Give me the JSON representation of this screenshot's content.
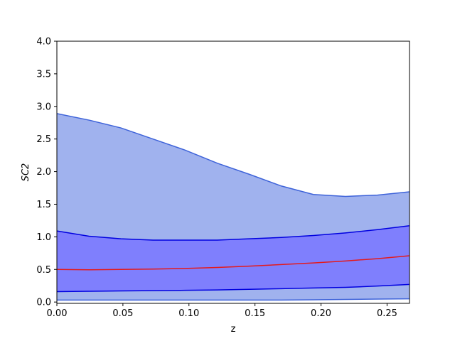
{
  "chart_data": {
    "type": "area",
    "xlabel": "z",
    "ylabel": "SC2",
    "xlim": [
      0.0,
      0.267
    ],
    "ylim": [
      -0.02,
      4.0
    ],
    "xticks": [
      0.0,
      0.05,
      0.1,
      0.15,
      0.2,
      0.25
    ],
    "xtick_labels": [
      "0.00",
      "0.05",
      "0.10",
      "0.15",
      "0.20",
      "0.25"
    ],
    "yticks": [
      0.0,
      0.5,
      1.0,
      1.5,
      2.0,
      2.5,
      3.0,
      3.5,
      4.0
    ],
    "ytick_labels": [
      "0.0",
      "0.5",
      "1.0",
      "1.5",
      "2.0",
      "2.5",
      "3.0",
      "3.5",
      "4.0"
    ],
    "grid": false,
    "x": [
      0.0,
      0.0243,
      0.0485,
      0.0728,
      0.0971,
      0.1214,
      0.1456,
      0.1699,
      0.1942,
      0.2185,
      0.2427,
      0.267
    ],
    "outer_band": {
      "upper": [
        2.89,
        2.79,
        2.67,
        2.5,
        2.33,
        2.13,
        1.96,
        1.78,
        1.65,
        1.62,
        1.64,
        1.69
      ],
      "lower": [
        0.03,
        0.03,
        0.03,
        0.03,
        0.03,
        0.03,
        0.03,
        0.03,
        0.035,
        0.04,
        0.045,
        0.05
      ],
      "fill": "#a0b2ee",
      "edge": "#3e63d9"
    },
    "inner_band": {
      "upper": [
        1.09,
        1.01,
        0.97,
        0.95,
        0.95,
        0.95,
        0.97,
        0.99,
        1.02,
        1.06,
        1.11,
        1.17
      ],
      "lower": [
        0.16,
        0.165,
        0.17,
        0.175,
        0.18,
        0.185,
        0.195,
        0.205,
        0.215,
        0.225,
        0.245,
        0.27
      ],
      "fill": "#7f7ffd",
      "edge": "#0000e0"
    },
    "median": {
      "values": [
        0.5,
        0.495,
        0.5,
        0.505,
        0.515,
        0.53,
        0.55,
        0.575,
        0.6,
        0.63,
        0.665,
        0.71
      ],
      "color": "#e41a1c"
    }
  }
}
